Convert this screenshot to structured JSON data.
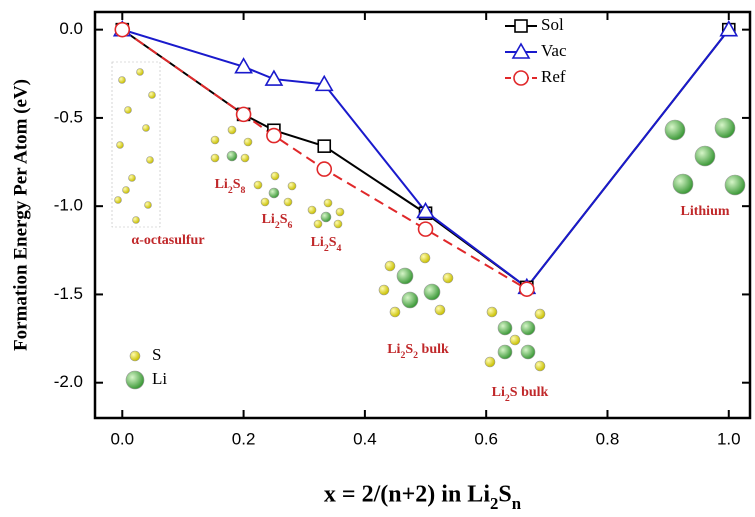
{
  "chart_data": {
    "type": "line",
    "x_label": "x = 2/(n+2) in Li2Sn",
    "y_label": "Formation Energy Per Atom (eV)",
    "xlim": [
      -0.045,
      1.035
    ],
    "ylim": [
      -2.2,
      0.1
    ],
    "xticks": [
      {
        "value": 0,
        "label": "0.0"
      },
      0.2,
      0.4,
      0.6,
      0.8,
      {
        "value": 1,
        "label": "1.0"
      }
    ],
    "yticks": [
      {
        "value": 0,
        "label": "0.0"
      },
      -0.5,
      {
        "value": -1,
        "label": "-1.0"
      },
      -1.5,
      {
        "value": -2,
        "label": "-2.0"
      }
    ],
    "series": [
      {
        "name": "Sol",
        "color": "#000000",
        "marker": "square",
        "dashed": false,
        "x": [
          0,
          0.2,
          0.25,
          0.333,
          0.5,
          0.667,
          1
        ],
        "values": [
          0,
          -0.48,
          -0.57,
          -0.66,
          -1.04,
          -1.46,
          0
        ]
      },
      {
        "name": "Vac",
        "color": "#1a1acc",
        "marker": "triangle",
        "dashed": false,
        "x": [
          0,
          0.2,
          0.25,
          0.333,
          0.5,
          0.667,
          1
        ],
        "values": [
          0,
          -0.21,
          -0.28,
          -0.31,
          -1.03,
          -1.46,
          0
        ]
      },
      {
        "name": "Ref",
        "color": "#e0282a",
        "marker": "circle",
        "dashed": true,
        "x": [
          0,
          0.2,
          0.25,
          0.333,
          0.5,
          0.667
        ],
        "values": [
          0,
          -0.48,
          -0.6,
          -0.79,
          -1.13,
          -1.47
        ]
      }
    ],
    "annotations": [
      "α-octasulfur",
      "Li2S8",
      "Li2S6",
      "Li2S4",
      "Li2S2 bulk",
      "Li2S bulk",
      "Lithium"
    ],
    "atom_legend": [
      "S",
      "Li"
    ]
  }
}
